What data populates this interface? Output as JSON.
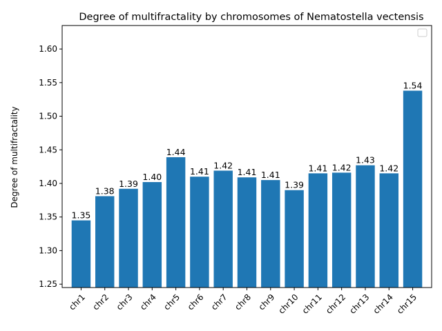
{
  "chart_data": {
    "type": "bar",
    "title": "Degree of multifractality by chromosomes of Nematostella vectensis",
    "xlabel": "",
    "ylabel": "Degree of multifractality",
    "categories": [
      "chr1",
      "chr2",
      "chr3",
      "chr4",
      "chr5",
      "chr6",
      "chr7",
      "chr8",
      "chr9",
      "chr10",
      "chr11",
      "chr12",
      "chr13",
      "chr14",
      "chr15"
    ],
    "values": [
      1.345,
      1.381,
      1.392,
      1.402,
      1.439,
      1.41,
      1.419,
      1.409,
      1.405,
      1.39,
      1.415,
      1.416,
      1.427,
      1.415,
      1.538
    ],
    "data_labels": [
      "1.35",
      "1.38",
      "1.39",
      "1.40",
      "1.44",
      "1.41",
      "1.42",
      "1.41",
      "1.41",
      "1.39",
      "1.41",
      "1.42",
      "1.43",
      "1.42",
      "1.54"
    ],
    "ylim": [
      1.245,
      1.635
    ],
    "yticks": [
      1.25,
      1.3,
      1.35,
      1.4,
      1.45,
      1.5,
      1.55,
      1.6
    ],
    "ytick_labels": [
      "1.25",
      "1.30",
      "1.35",
      "1.40",
      "1.45",
      "1.50",
      "1.55",
      "1.60"
    ],
    "xtick_rotation_deg": -45,
    "bar_color": "#1f77b4",
    "grid": false,
    "legend": {
      "placement": "top-right",
      "entries": []
    }
  }
}
